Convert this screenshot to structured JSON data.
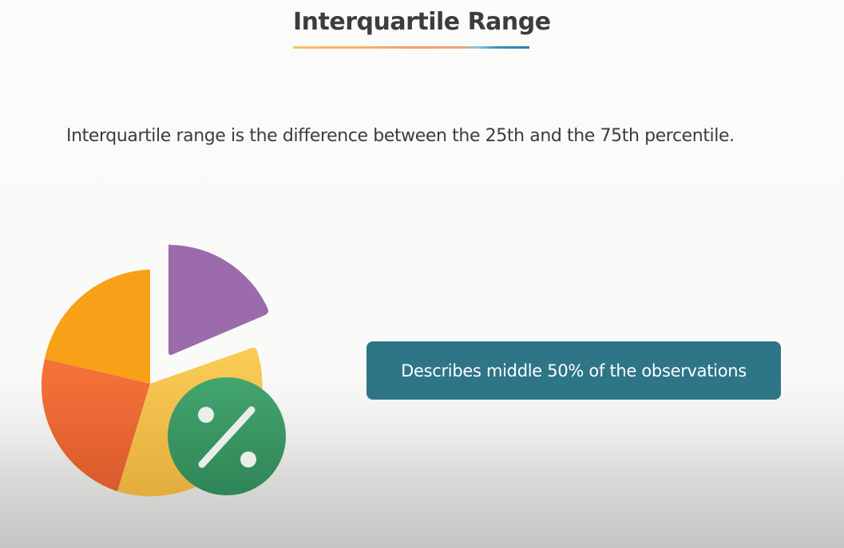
{
  "slide": {
    "title": "Interquartile Range",
    "subtitle": "Interquartile range is the difference between the 25th and the 75th percentile.",
    "callout_text": "Describes middle 50% of the observations"
  },
  "icons": {
    "pie_chart": "pie-chart-icon",
    "percent": "percent-icon"
  },
  "colors": {
    "title_text": "#3d3d3d",
    "callout_background": "#2e7588",
    "callout_text": "#ffffff",
    "slice_purple": "#9b6bab",
    "slice_orange": "#f8a018",
    "slice_red_orange": "#f26c35",
    "slice_yellow": "#f9c74f",
    "percent_badge": "#3a9a68"
  }
}
